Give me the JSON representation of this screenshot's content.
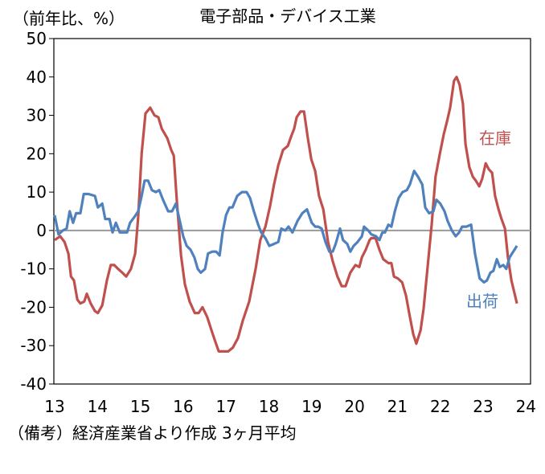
{
  "chart_data": {
    "type": "line",
    "title": "電子部品・デバイス工業",
    "ylabel": "（前年比、%）",
    "footnote": "（備考）経済産業省より作成 3ヶ月平均",
    "ylim": [
      -40,
      50
    ],
    "yticks": [
      "50",
      "40",
      "30",
      "20",
      "10",
      "0",
      "-10",
      "-20",
      "-30",
      "-40"
    ],
    "xlim": [
      13,
      24
    ],
    "xticks": [
      "13",
      "14",
      "15",
      "16",
      "17",
      "18",
      "19",
      "20",
      "21",
      "22",
      "23",
      "24"
    ],
    "grid": false,
    "series": [
      {
        "name": "在庫",
        "color": "#c0504d",
        "points": [
          [
            13.0,
            -2.5
          ],
          [
            13.13,
            -1.5
          ],
          [
            13.23,
            -3
          ],
          [
            13.32,
            -6
          ],
          [
            13.38,
            -12
          ],
          [
            13.45,
            -13
          ],
          [
            13.53,
            -18
          ],
          [
            13.6,
            -19
          ],
          [
            13.69,
            -18.5
          ],
          [
            13.75,
            -16.5
          ],
          [
            13.84,
            -19
          ],
          [
            13.94,
            -21
          ],
          [
            14.01,
            -21.5
          ],
          [
            14.11,
            -19.5
          ],
          [
            14.22,
            -13
          ],
          [
            14.31,
            -9
          ],
          [
            14.39,
            -9
          ],
          [
            14.48,
            -10
          ],
          [
            14.58,
            -11
          ],
          [
            14.67,
            -12
          ],
          [
            14.78,
            -10
          ],
          [
            14.88,
            -6
          ],
          [
            14.95,
            3.5
          ],
          [
            15.03,
            20
          ],
          [
            15.12,
            30.5
          ],
          [
            15.23,
            32
          ],
          [
            15.33,
            30
          ],
          [
            15.42,
            29.5
          ],
          [
            15.5,
            26.5
          ],
          [
            15.63,
            24
          ],
          [
            15.72,
            21
          ],
          [
            15.78,
            19.5
          ],
          [
            15.85,
            8
          ],
          [
            15.95,
            -6.5
          ],
          [
            16.04,
            -14
          ],
          [
            16.15,
            -18.5
          ],
          [
            16.27,
            -21.5
          ],
          [
            16.36,
            -21.5
          ],
          [
            16.45,
            -20
          ],
          [
            16.56,
            -22.5
          ],
          [
            16.66,
            -26
          ],
          [
            16.75,
            -29
          ],
          [
            16.83,
            -31.5
          ],
          [
            16.94,
            -31.5
          ],
          [
            17.05,
            -31.5
          ],
          [
            17.16,
            -30.5
          ],
          [
            17.28,
            -28
          ],
          [
            17.39,
            -23.5
          ],
          [
            17.54,
            -18.5
          ],
          [
            17.69,
            -10
          ],
          [
            17.8,
            -2.5
          ],
          [
            17.92,
            1
          ],
          [
            18.03,
            6.5
          ],
          [
            18.12,
            12
          ],
          [
            18.22,
            17
          ],
          [
            18.33,
            21
          ],
          [
            18.44,
            22
          ],
          [
            18.52,
            24.5
          ],
          [
            18.59,
            26.5
          ],
          [
            18.65,
            29.5
          ],
          [
            18.74,
            31
          ],
          [
            18.82,
            31
          ],
          [
            18.91,
            24
          ],
          [
            18.99,
            18.5
          ],
          [
            19.08,
            15.5
          ],
          [
            19.17,
            9
          ],
          [
            19.27,
            5.5
          ],
          [
            19.38,
            -3
          ],
          [
            19.49,
            -8
          ],
          [
            19.6,
            -12
          ],
          [
            19.7,
            -14.5
          ],
          [
            19.79,
            -14.5
          ],
          [
            19.9,
            -11
          ],
          [
            20.02,
            -9
          ],
          [
            20.11,
            -9.5
          ],
          [
            20.17,
            -7
          ],
          [
            20.26,
            -5
          ],
          [
            20.35,
            -2.5
          ],
          [
            20.39,
            -2
          ],
          [
            20.49,
            -2
          ],
          [
            20.58,
            -5
          ],
          [
            20.67,
            -7.5
          ],
          [
            20.79,
            -8.5
          ],
          [
            20.86,
            -8.5
          ],
          [
            20.92,
            -12
          ],
          [
            21.01,
            -12.5
          ],
          [
            21.11,
            -13.5
          ],
          [
            21.2,
            -17
          ],
          [
            21.29,
            -22.5
          ],
          [
            21.37,
            -27
          ],
          [
            21.44,
            -29.5
          ],
          [
            21.54,
            -26
          ],
          [
            21.61,
            -20.5
          ],
          [
            21.71,
            -9
          ],
          [
            21.8,
            1.5
          ],
          [
            21.89,
            14
          ],
          [
            21.99,
            20
          ],
          [
            22.08,
            25
          ],
          [
            22.16,
            28.5
          ],
          [
            22.23,
            32
          ],
          [
            22.32,
            39
          ],
          [
            22.38,
            40
          ],
          [
            22.45,
            38
          ],
          [
            22.53,
            33
          ],
          [
            22.59,
            22.5
          ],
          [
            22.68,
            16.5
          ],
          [
            22.76,
            14
          ],
          [
            22.83,
            13
          ],
          [
            22.91,
            11.5
          ],
          [
            22.98,
            13.5
          ],
          [
            23.06,
            17.5
          ],
          [
            23.13,
            16
          ],
          [
            23.21,
            15
          ],
          [
            23.28,
            9
          ],
          [
            23.36,
            5.5
          ],
          [
            23.43,
            3
          ],
          [
            23.51,
            0.5
          ],
          [
            23.58,
            -7
          ],
          [
            23.66,
            -13
          ],
          [
            23.79,
            -19
          ]
        ]
      },
      {
        "name": "出荷",
        "color": "#4f81bd",
        "points": [
          [
            13.0,
            4
          ],
          [
            13.09,
            -1
          ],
          [
            13.19,
            0
          ],
          [
            13.28,
            0.5
          ],
          [
            13.35,
            5
          ],
          [
            13.43,
            2
          ],
          [
            13.5,
            4.5
          ],
          [
            13.6,
            4.5
          ],
          [
            13.68,
            9.5
          ],
          [
            13.79,
            9.5
          ],
          [
            13.94,
            9
          ],
          [
            14.01,
            6
          ],
          [
            14.11,
            7
          ],
          [
            14.18,
            3
          ],
          [
            14.28,
            3
          ],
          [
            14.35,
            -0.5
          ],
          [
            14.43,
            2
          ],
          [
            14.52,
            -0.5
          ],
          [
            14.61,
            -0.5
          ],
          [
            14.69,
            -0.5
          ],
          [
            14.76,
            2
          ],
          [
            14.86,
            3.5
          ],
          [
            14.95,
            5
          ],
          [
            15.03,
            9
          ],
          [
            15.1,
            13
          ],
          [
            15.18,
            13
          ],
          [
            15.27,
            10.5
          ],
          [
            15.36,
            10
          ],
          [
            15.44,
            10.5
          ],
          [
            15.53,
            8
          ],
          [
            15.65,
            5
          ],
          [
            15.74,
            5
          ],
          [
            15.83,
            7
          ],
          [
            15.93,
            2
          ],
          [
            16.0,
            -1.5
          ],
          [
            16.08,
            -4
          ],
          [
            16.17,
            -5
          ],
          [
            16.26,
            -7
          ],
          [
            16.34,
            -10
          ],
          [
            16.41,
            -11
          ],
          [
            16.51,
            -10
          ],
          [
            16.58,
            -6
          ],
          [
            16.68,
            -5.5
          ],
          [
            16.77,
            -5.5
          ],
          [
            16.85,
            -6.5
          ],
          [
            16.92,
            -0.5
          ],
          [
            17.0,
            4
          ],
          [
            17.08,
            6
          ],
          [
            17.15,
            6
          ],
          [
            17.26,
            9
          ],
          [
            17.37,
            10
          ],
          [
            17.48,
            10
          ],
          [
            17.56,
            8.5
          ],
          [
            17.65,
            5
          ],
          [
            17.75,
            1.5
          ],
          [
            17.82,
            -0.5
          ],
          [
            17.92,
            -2
          ],
          [
            18.01,
            -4
          ],
          [
            18.12,
            -3.5
          ],
          [
            18.22,
            -3
          ],
          [
            18.29,
            0.5
          ],
          [
            18.38,
            0
          ],
          [
            18.46,
            1
          ],
          [
            18.55,
            -0.5
          ],
          [
            18.67,
            2.5
          ],
          [
            18.78,
            4.5
          ],
          [
            18.89,
            5.5
          ],
          [
            19.0,
            2
          ],
          [
            19.08,
            1
          ],
          [
            19.15,
            1
          ],
          [
            19.23,
            0.5
          ],
          [
            19.32,
            -3
          ],
          [
            19.41,
            -5.5
          ],
          [
            19.49,
            -5.5
          ],
          [
            19.56,
            -3.5
          ],
          [
            19.66,
            0.5
          ],
          [
            19.73,
            -2.5
          ],
          [
            19.83,
            -3.5
          ],
          [
            19.9,
            -5.5
          ],
          [
            19.98,
            -4
          ],
          [
            20.07,
            -3
          ],
          [
            20.17,
            -1.5
          ],
          [
            20.22,
            1
          ],
          [
            20.32,
            0
          ],
          [
            20.39,
            -1
          ],
          [
            20.5,
            -1.5
          ],
          [
            20.58,
            -2.5
          ],
          [
            20.65,
            -0.5
          ],
          [
            20.71,
            -0.5
          ],
          [
            20.79,
            1.5
          ],
          [
            20.86,
            1
          ],
          [
            20.94,
            5
          ],
          [
            21.03,
            8.5
          ],
          [
            21.12,
            10
          ],
          [
            21.22,
            10.5
          ],
          [
            21.29,
            12
          ],
          [
            21.39,
            15.5
          ],
          [
            21.48,
            14
          ],
          [
            21.58,
            12
          ],
          [
            21.65,
            6
          ],
          [
            21.74,
            4.5
          ],
          [
            21.84,
            5
          ],
          [
            21.91,
            8
          ],
          [
            22.0,
            7
          ],
          [
            22.1,
            5
          ],
          [
            22.17,
            2.5
          ],
          [
            22.27,
            0
          ],
          [
            22.36,
            -1.5
          ],
          [
            22.44,
            -0.5
          ],
          [
            22.51,
            1
          ],
          [
            22.61,
            1
          ],
          [
            22.72,
            1.5
          ],
          [
            22.81,
            -6
          ],
          [
            22.92,
            -12.5
          ],
          [
            23.02,
            -13.5
          ],
          [
            23.09,
            -13
          ],
          [
            23.17,
            -11
          ],
          [
            23.24,
            -10.5
          ],
          [
            23.32,
            -7.5
          ],
          [
            23.39,
            -9.5
          ],
          [
            23.47,
            -9
          ],
          [
            23.54,
            -10
          ],
          [
            23.62,
            -7
          ],
          [
            23.79,
            -4
          ]
        ]
      }
    ]
  }
}
